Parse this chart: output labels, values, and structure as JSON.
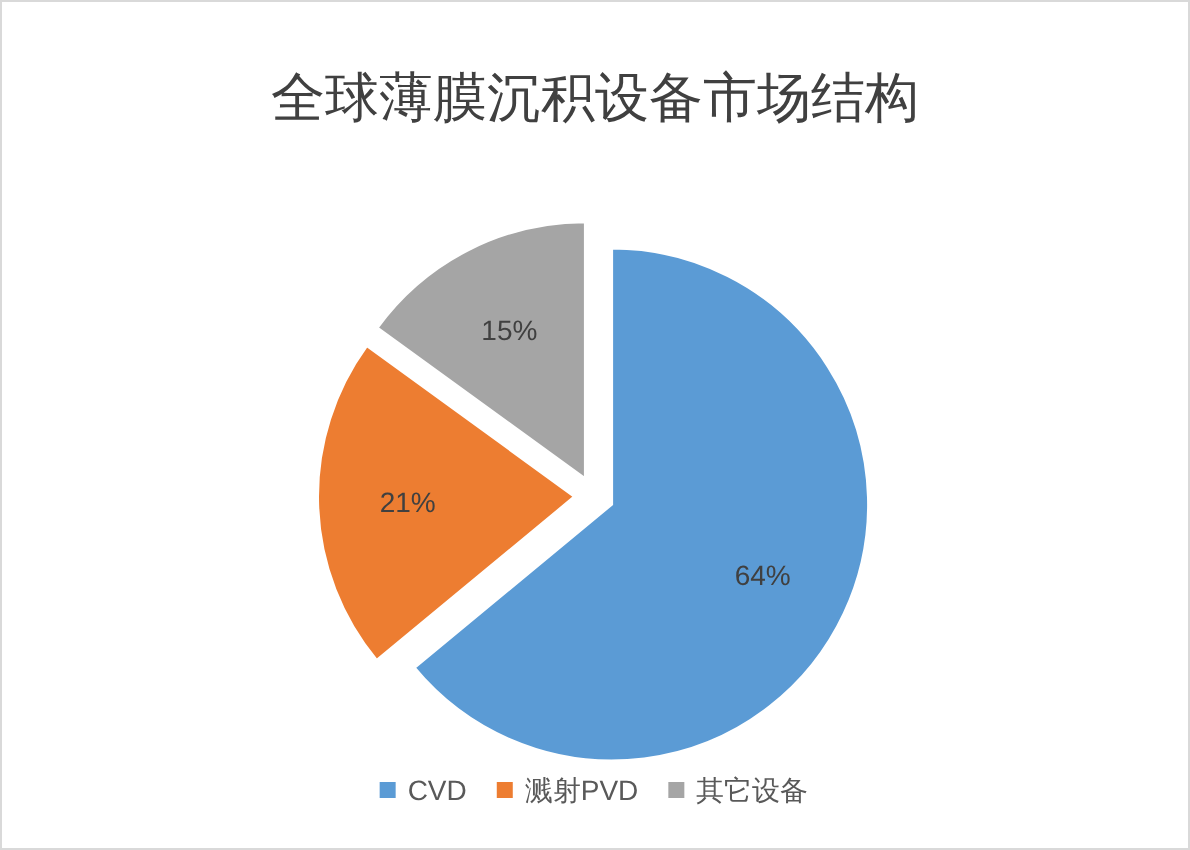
{
  "chart_data": {
    "type": "pie",
    "title": "全球薄膜沉积设备市场结构",
    "categories": [
      "CVD",
      "溅射PVD",
      "其它设备"
    ],
    "values": [
      64,
      21,
      15
    ],
    "value_labels": [
      "64%",
      "21%",
      "15%"
    ],
    "colors": [
      "#5b9bd5",
      "#ed7d31",
      "#a5a5a5"
    ],
    "legend": "bottom"
  }
}
